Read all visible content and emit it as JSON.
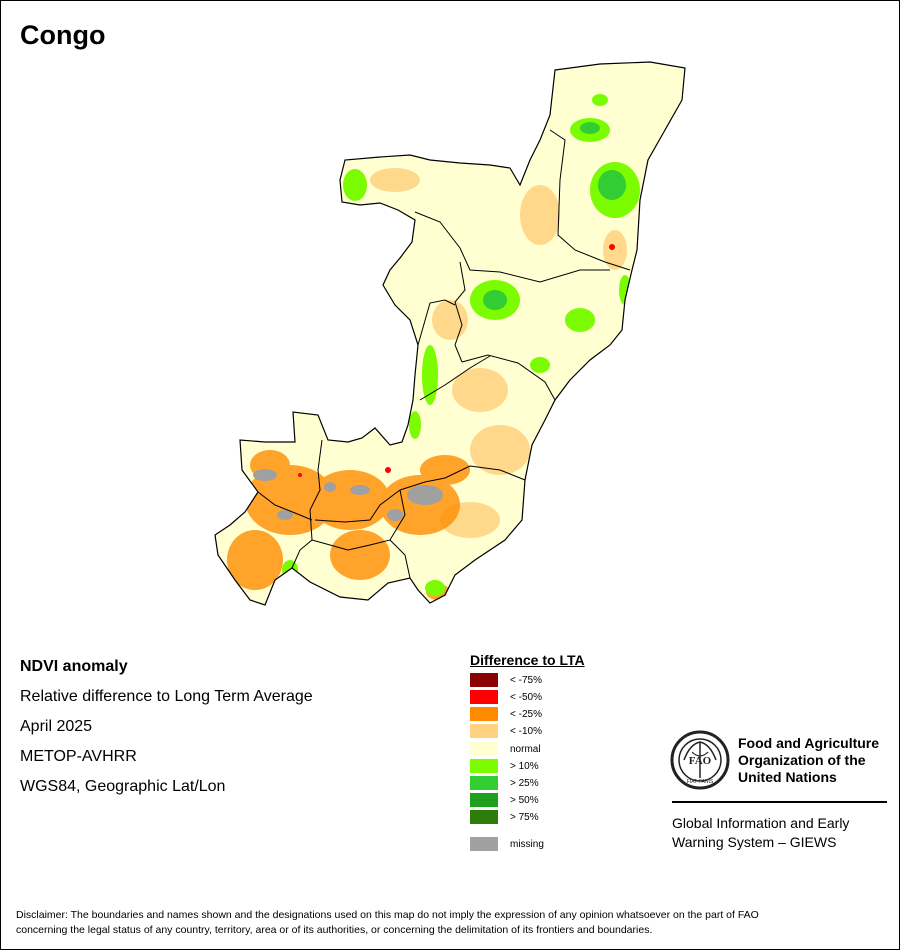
{
  "map_title": "Congo",
  "info": {
    "product": "NDVI anomaly",
    "description": "Relative difference to Long Term Average",
    "period": "April 2025",
    "sensor": "METOP-AVHRR",
    "projection": "WGS84, Geographic Lat/Lon"
  },
  "legend": {
    "title": "Difference to LTA",
    "items": [
      {
        "label": "< -75%",
        "color": "#8b0000"
      },
      {
        "label": "< -50%",
        "color": "#ff0000"
      },
      {
        "label": "< -25%",
        "color": "#ff8c00"
      },
      {
        "label": "< -10%",
        "color": "#ffd27f"
      },
      {
        "label": "normal",
        "color": "#ffffd2"
      },
      {
        "label": "> 10%",
        "color": "#7cfc00"
      },
      {
        "label": "> 25%",
        "color": "#32cd32"
      },
      {
        "label": "> 50%",
        "color": "#1ea01e"
      },
      {
        "label": "> 75%",
        "color": "#2e7d0a"
      },
      {
        "label": "missing",
        "color": "#a0a0a0"
      }
    ]
  },
  "organization": {
    "logo_text": "FAO",
    "logo_motto": "FIAT PANIS",
    "name_line1": "Food and Agriculture",
    "name_line2": "Organization of the",
    "name_line3": "United Nations",
    "system_line1": "Global Information and Early",
    "system_line2": "Warning System – GIEWS"
  },
  "disclaimer_line1": "Disclaimer: The boundaries and names shown and the designations used on this map do not imply the expression of any opinion whatsoever on the part of FAO",
  "disclaimer_line2": "concerning the legal status of any country, territory, area or of its authorities, or concerning the delimitation of its frontiers and boundaries."
}
